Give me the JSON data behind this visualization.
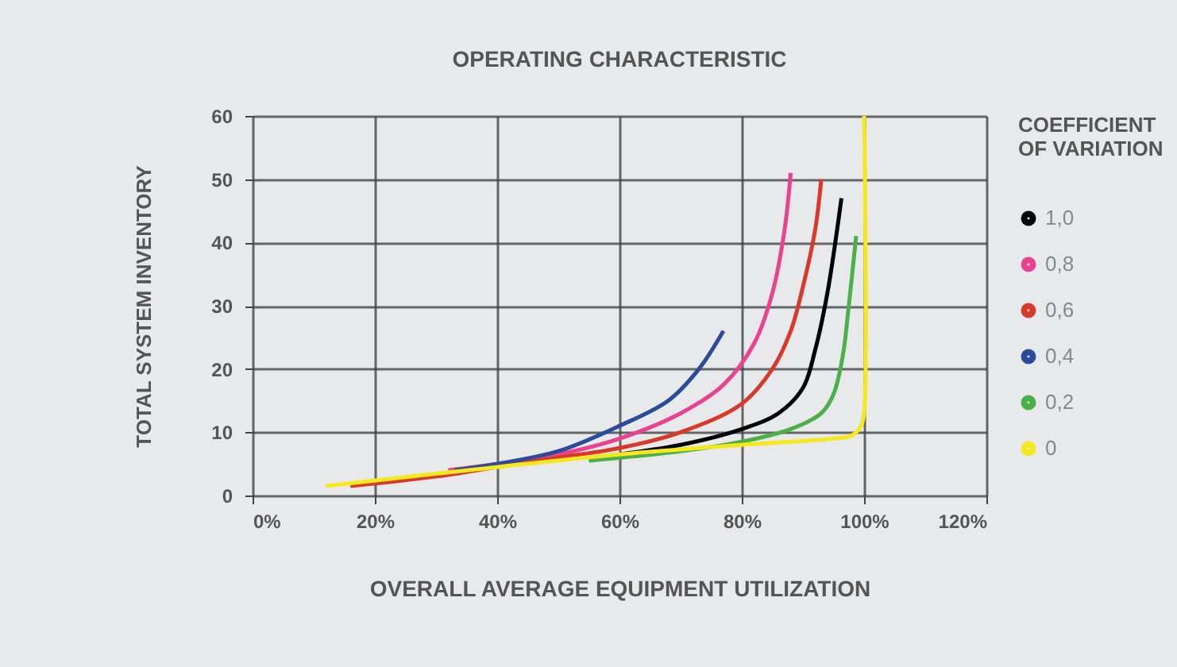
{
  "chart_data": {
    "type": "line",
    "title": "OPERATING CHARACTERISTIC",
    "xlabel": "OVERALL AVERAGE EQUIPMENT UTILIZATION",
    "ylabel": "TOTAL SYSTEM INVENTORY",
    "legend_title": "COEFFICIENT OF VARIATION",
    "legend": "right",
    "grid": true,
    "marker": "none",
    "line_style": "solid",
    "xlim": [
      0,
      120
    ],
    "xticks": [
      {
        "value": 0,
        "label": "0%"
      },
      {
        "value": 20,
        "label": "20%"
      },
      {
        "value": 40,
        "label": "40%"
      },
      {
        "value": 60,
        "label": "60%"
      },
      {
        "value": 80,
        "label": "80%"
      },
      {
        "value": 100,
        "label": "100%"
      },
      {
        "value": 120,
        "label": "120%"
      }
    ],
    "ylim": [
      0,
      60
    ],
    "yticks": [
      0,
      10,
      20,
      30,
      40,
      50,
      60
    ],
    "series": [
      {
        "name": "1,0",
        "color": "#000000",
        "x": [
          60,
          70,
          80,
          86,
          90,
          92,
          94,
          96.3
        ],
        "values": [
          6.5,
          8,
          10.5,
          13,
          17,
          23,
          32,
          47
        ]
      },
      {
        "name": "0,8",
        "color": "#e9428f",
        "x": [
          32,
          40,
          50,
          60,
          70,
          77,
          82,
          85,
          87,
          88
        ],
        "values": [
          4,
          5,
          6.5,
          9,
          13,
          17.5,
          24,
          32,
          42,
          51
        ]
      },
      {
        "name": "0,6",
        "color": "#d9392b",
        "x": [
          16,
          30,
          40,
          50,
          60,
          70,
          80,
          85,
          88,
          90,
          92,
          93
        ],
        "values": [
          1.5,
          3,
          4.5,
          6,
          7.5,
          10,
          14.5,
          20,
          26,
          33,
          42,
          50
        ]
      },
      {
        "name": "0,4",
        "color": "#2b4c9a",
        "x": [
          33,
          40,
          50,
          60,
          68,
          73,
          77
        ],
        "values": [
          4,
          5,
          7,
          11,
          15,
          20,
          26
        ]
      },
      {
        "name": "0,2",
        "color": "#4cb04a",
        "x": [
          55,
          70,
          80,
          88,
          93,
          95,
          96.5,
          97.5,
          98.7
        ],
        "values": [
          5.5,
          7,
          8.5,
          10.5,
          13,
          16,
          22,
          30,
          41
        ]
      },
      {
        "name": "0",
        "color": "#f5e81c",
        "x": [
          12,
          40,
          60,
          80,
          95,
          98,
          99.5,
          100,
          100
        ],
        "values": [
          1.5,
          4.5,
          6.5,
          8,
          9,
          9.5,
          11,
          13,
          60
        ]
      }
    ]
  }
}
